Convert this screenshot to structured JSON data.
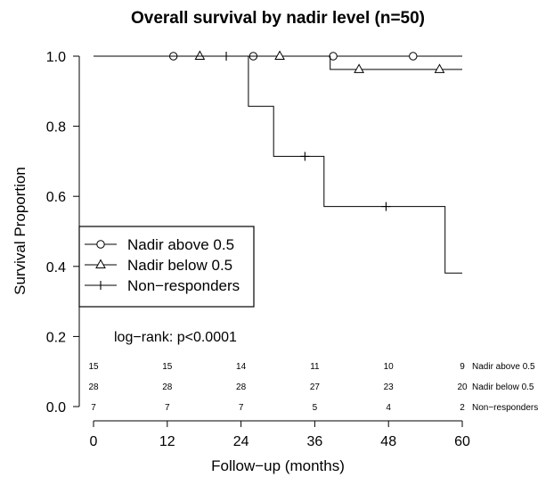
{
  "chart_data": {
    "type": "line",
    "title": "Overall survival by nadir level (n=50)",
    "xlabel": "Follow−up (months)",
    "ylabel": "Survival Proportion",
    "xlim": [
      0,
      60
    ],
    "ylim": [
      0,
      1
    ],
    "x_ticks": [
      "0",
      "12",
      "24",
      "36",
      "48",
      "60"
    ],
    "y_ticks": [
      "0.0",
      "0.2",
      "0.4",
      "0.6",
      "0.8",
      "1.0"
    ],
    "grid": false,
    "legend_position": "left",
    "series": [
      {
        "name": "Nadir above 0.5",
        "marker": "circle",
        "steps": [
          [
            0,
            1.0
          ],
          [
            60,
            1.0
          ]
        ],
        "censored": [
          [
            13,
            1.0
          ],
          [
            26,
            1.0
          ],
          [
            39,
            1.0
          ],
          [
            52,
            1.0
          ]
        ]
      },
      {
        "name": "Nadir below 0.5",
        "marker": "triangle",
        "steps": [
          [
            0,
            1.0
          ],
          [
            38.5,
            1.0
          ],
          [
            38.5,
            0.962
          ],
          [
            60,
            0.962
          ]
        ],
        "censored": [
          [
            17.3,
            1.0
          ],
          [
            30.3,
            1.0
          ],
          [
            43.2,
            0.962
          ],
          [
            56.3,
            0.962
          ]
        ]
      },
      {
        "name": "Non−responders",
        "marker": "plus",
        "steps": [
          [
            0,
            1.0
          ],
          [
            25.2,
            1.0
          ],
          [
            25.2,
            0.857
          ],
          [
            29.3,
            0.857
          ],
          [
            29.3,
            0.714
          ],
          [
            37.5,
            0.714
          ],
          [
            37.5,
            0.571
          ],
          [
            57.2,
            0.571
          ],
          [
            57.2,
            0.381
          ],
          [
            60,
            0.381
          ]
        ],
        "censored": [
          [
            21.6,
            1.0
          ],
          [
            34.4,
            0.714
          ],
          [
            47.6,
            0.571
          ]
        ]
      }
    ],
    "annotation": "log−rank: p<0.0001",
    "risk_table": {
      "times": [
        0,
        12,
        24,
        36,
        48,
        60
      ],
      "rows": [
        {
          "label": "Nadir above 0.5",
          "values": [
            "15",
            "15",
            "14",
            "11",
            "10",
            "9"
          ]
        },
        {
          "label": "Nadir below 0.5",
          "values": [
            "28",
            "28",
            "28",
            "27",
            "23",
            "20"
          ]
        },
        {
          "label": "Non−responders",
          "values": [
            "7",
            "7",
            "7",
            "5",
            "4",
            "2"
          ]
        }
      ]
    }
  }
}
